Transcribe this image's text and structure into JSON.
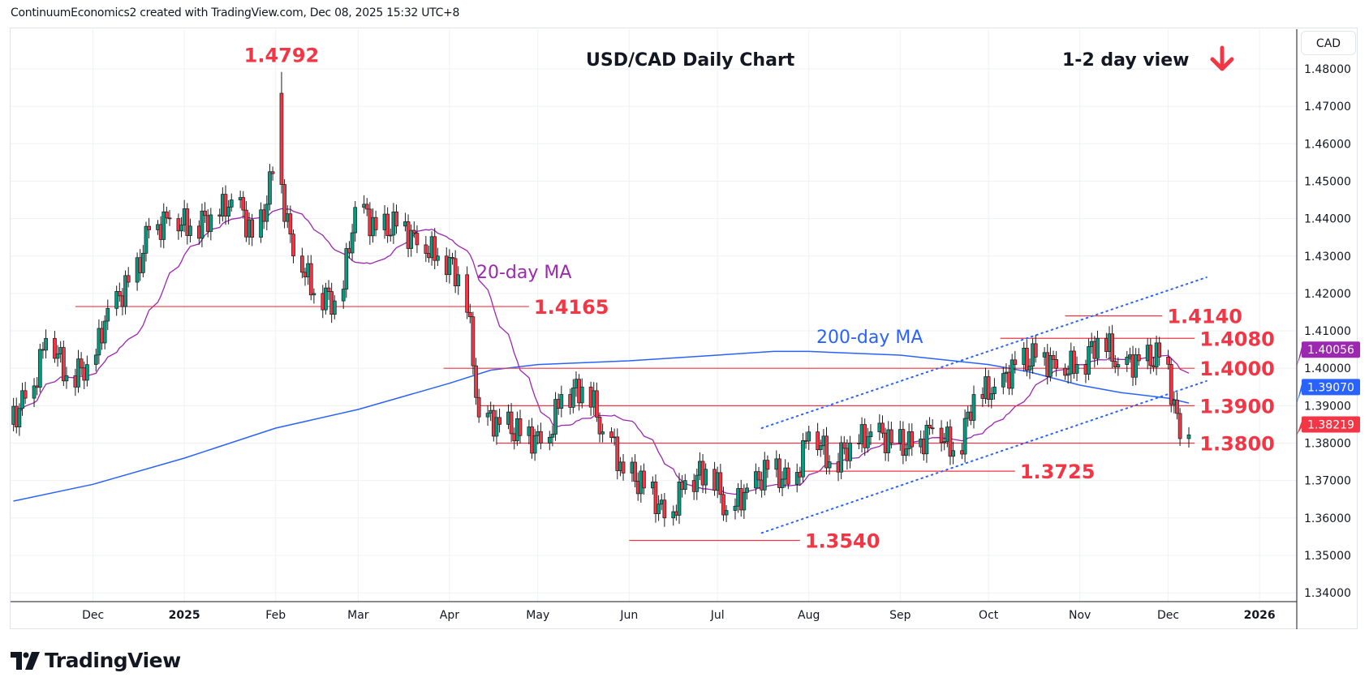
{
  "header": {
    "attribution": "ContinuumEconomics2 created with TradingView.com, Dec 08, 2025 15:32 UTC+8"
  },
  "currency_button": "CAD",
  "logo": {
    "text": "TradingView"
  },
  "colors": {
    "up": "#089981",
    "down": "#f23645",
    "ma20": "#9c27b0",
    "ma200": "#2962ff",
    "level": "#f23645",
    "grid": "#eef1f5"
  },
  "chart_data": {
    "type": "candlestick",
    "title": "USD/CAD Daily Chart",
    "subtitle": "1-2 day view",
    "bias_icon": "arrow-down-icon",
    "symbol": "USD/CAD",
    "timeframe": "Daily",
    "ylim": [
      1.337,
      1.4885
    ],
    "y_ticks": [
      "1.48000",
      "1.47000",
      "1.46000",
      "1.45000",
      "1.44000",
      "1.43000",
      "1.42000",
      "1.41000",
      "1.40000",
      "1.39000",
      "1.38000",
      "1.37000",
      "1.36000",
      "1.35000",
      "1.34000"
    ],
    "x_ticks": [
      {
        "date": "2024-12-01",
        "label": "Dec",
        "bold": false
      },
      {
        "date": "2025-01-01",
        "label": "2025",
        "bold": true
      },
      {
        "date": "2025-02-01",
        "label": "Feb",
        "bold": false
      },
      {
        "date": "2025-03-01",
        "label": "Mar",
        "bold": false
      },
      {
        "date": "2025-04-01",
        "label": "Apr",
        "bold": false
      },
      {
        "date": "2025-05-01",
        "label": "May",
        "bold": false
      },
      {
        "date": "2025-06-01",
        "label": "Jun",
        "bold": false
      },
      {
        "date": "2025-07-01",
        "label": "Jul",
        "bold": false
      },
      {
        "date": "2025-08-01",
        "label": "Aug",
        "bold": false
      },
      {
        "date": "2025-09-01",
        "label": "Sep",
        "bold": false
      },
      {
        "date": "2025-10-01",
        "label": "Oct",
        "bold": false
      },
      {
        "date": "2025-11-01",
        "label": "Nov",
        "bold": false
      },
      {
        "date": "2025-12-01",
        "label": "Dec",
        "bold": false
      },
      {
        "date": "2026-01-01",
        "label": "2026",
        "bold": true
      }
    ],
    "weekly_closes": [
      {
        "week": "2024-11-04",
        "close": 1.392
      },
      {
        "week": "2024-11-11",
        "close": 1.408
      },
      {
        "week": "2024-11-18",
        "close": 1.398
      },
      {
        "week": "2024-11-25",
        "close": 1.401
      },
      {
        "week": "2024-12-02",
        "close": 1.416
      },
      {
        "week": "2024-12-09",
        "close": 1.423
      },
      {
        "week": "2024-12-16",
        "close": 1.437
      },
      {
        "week": "2024-12-23",
        "close": 1.44
      },
      {
        "week": "2024-12-30",
        "close": 1.438
      },
      {
        "week": "2025-01-06",
        "close": 1.441
      },
      {
        "week": "2025-01-13",
        "close": 1.445
      },
      {
        "week": "2025-01-20",
        "close": 1.435
      },
      {
        "week": "2025-01-27",
        "close": 1.452
      },
      {
        "week": "2025-02-03",
        "close": 1.43
      },
      {
        "week": "2025-02-10",
        "close": 1.42
      },
      {
        "week": "2025-02-17",
        "close": 1.418
      },
      {
        "week": "2025-02-24",
        "close": 1.443
      },
      {
        "week": "2025-03-03",
        "close": 1.437
      },
      {
        "week": "2025-03-10",
        "close": 1.438
      },
      {
        "week": "2025-03-17",
        "close": 1.433
      },
      {
        "week": "2025-03-24",
        "close": 1.43
      },
      {
        "week": "2025-03-31",
        "close": 1.425
      },
      {
        "week": "2025-04-07",
        "close": 1.387
      },
      {
        "week": "2025-04-14",
        "close": 1.385
      },
      {
        "week": "2025-04-21",
        "close": 1.382
      },
      {
        "week": "2025-04-28",
        "close": 1.38
      },
      {
        "week": "2025-05-05",
        "close": 1.393
      },
      {
        "week": "2025-05-12",
        "close": 1.395
      },
      {
        "week": "2025-05-19",
        "close": 1.383
      },
      {
        "week": "2025-05-26",
        "close": 1.372
      },
      {
        "week": "2025-06-02",
        "close": 1.368
      },
      {
        "week": "2025-06-09",
        "close": 1.36
      },
      {
        "week": "2025-06-16",
        "close": 1.37
      },
      {
        "week": "2025-06-23",
        "close": 1.373
      },
      {
        "week": "2025-06-30",
        "close": 1.362
      },
      {
        "week": "2025-07-07",
        "close": 1.368
      },
      {
        "week": "2025-07-14",
        "close": 1.373
      },
      {
        "week": "2025-07-21",
        "close": 1.369
      },
      {
        "week": "2025-07-28",
        "close": 1.383
      },
      {
        "week": "2025-08-04",
        "close": 1.375
      },
      {
        "week": "2025-08-11",
        "close": 1.38
      },
      {
        "week": "2025-08-18",
        "close": 1.383
      },
      {
        "week": "2025-08-25",
        "close": 1.38
      },
      {
        "week": "2025-09-01",
        "close": 1.379
      },
      {
        "week": "2025-09-08",
        "close": 1.384
      },
      {
        "week": "2025-09-15",
        "close": 1.378
      },
      {
        "week": "2025-09-22",
        "close": 1.393
      },
      {
        "week": "2025-09-29",
        "close": 1.395
      },
      {
        "week": "2025-10-06",
        "close": 1.401
      },
      {
        "week": "2025-10-13",
        "close": 1.403
      },
      {
        "week": "2025-10-20",
        "close": 1.4
      },
      {
        "week": "2025-10-27",
        "close": 1.401
      },
      {
        "week": "2025-11-03",
        "close": 1.408
      },
      {
        "week": "2025-11-10",
        "close": 1.401
      },
      {
        "week": "2025-11-17",
        "close": 1.402
      },
      {
        "week": "2025-11-24",
        "close": 1.403
      },
      {
        "week": "2025-12-01",
        "close": 1.3812
      },
      {
        "week": "2025-12-08",
        "close": 1.3822,
        "days": 1
      }
    ],
    "high_overrides": [
      {
        "date": "2025-02-03",
        "high": 1.4792,
        "open": 1.4735
      }
    ],
    "series": [
      {
        "name": "20-day MA",
        "label": "20-day MA",
        "last": "1.40056",
        "computed": "sma20"
      },
      {
        "name": "200-day MA",
        "label": "200-day MA",
        "last": "1.39070",
        "points": [
          [
            "2024-11-04",
            1.3645
          ],
          [
            "2024-12-01",
            1.369
          ],
          [
            "2025-01-01",
            1.376
          ],
          [
            "2025-02-01",
            1.384
          ],
          [
            "2025-03-01",
            1.389
          ],
          [
            "2025-04-01",
            1.396
          ],
          [
            "2025-04-15",
            1.3995
          ],
          [
            "2025-05-01",
            1.401
          ],
          [
            "2025-06-01",
            1.402
          ],
          [
            "2025-07-01",
            1.4035
          ],
          [
            "2025-07-20",
            1.4045
          ],
          [
            "2025-08-01",
            1.4045
          ],
          [
            "2025-09-01",
            1.4035
          ],
          [
            "2025-10-01",
            1.401
          ],
          [
            "2025-10-15",
            1.399
          ],
          [
            "2025-11-01",
            1.3955
          ],
          [
            "2025-11-15",
            1.3935
          ],
          [
            "2025-12-01",
            1.392
          ],
          [
            "2025-12-08",
            1.3907
          ]
        ]
      }
    ],
    "last_price": "1.38219",
    "peak_label": {
      "text": "1.4792",
      "date": "2025-02-03",
      "price": 1.4792
    },
    "levels": [
      {
        "text": "1.4165",
        "price": 1.4165,
        "from": "2024-11-25",
        "to": "2025-04-28"
      },
      {
        "text": "1.4140",
        "price": 1.414,
        "from": "2025-10-27",
        "to": "2025-11-29"
      },
      {
        "text": "1.4080",
        "price": 1.408,
        "from": "2025-10-05",
        "to": "2025-12-10"
      },
      {
        "text": "1.4000",
        "price": 1.4,
        "from": "2025-03-30",
        "to": "2025-12-10"
      },
      {
        "text": "1.3900",
        "price": 1.39,
        "from": "2025-04-11",
        "to": "2025-12-10"
      },
      {
        "text": "1.3800",
        "price": 1.38,
        "from": "2025-04-17",
        "to": "2025-12-10"
      },
      {
        "text": "1.3725",
        "price": 1.3725,
        "from": "2025-07-29",
        "to": "2025-10-10"
      },
      {
        "text": "1.3540",
        "price": 1.354,
        "from": "2025-06-01",
        "to": "2025-07-29"
      }
    ],
    "channel": [
      {
        "name": "upper",
        "from": [
          "2025-07-16",
          1.384
        ],
        "to": [
          "2025-12-14",
          1.4243
        ]
      },
      {
        "name": "lower",
        "from": [
          "2025-07-16",
          1.356
        ],
        "to": [
          "2025-12-14",
          1.3966
        ]
      }
    ]
  }
}
